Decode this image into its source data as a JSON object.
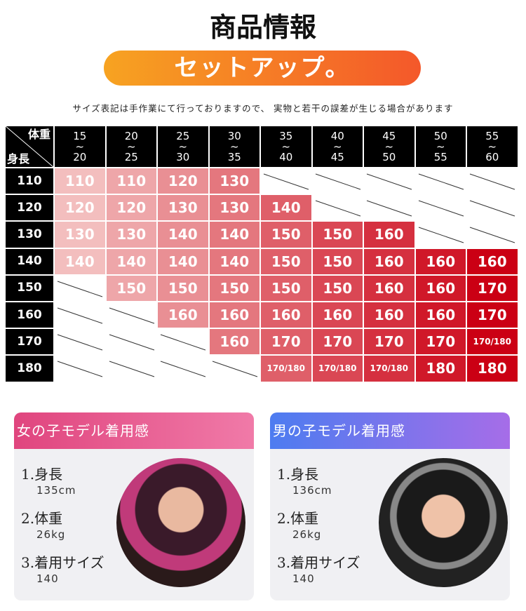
{
  "header": {
    "title": "商品情報",
    "banner": "セットアップ。",
    "note": "サイズ表記は手作業にて行っておりますので、 実物と若干の誤差が生じる場合があります"
  },
  "table": {
    "corner_weight": "体重",
    "corner_height": "身長",
    "columns": [
      "15\n~\n20",
      "20\n~\n25",
      "25\n~\n30",
      "30\n~\n35",
      "35\n~\n40",
      "40\n~\n45",
      "45\n~\n50",
      "50\n~\n55",
      "55\n~\n60"
    ],
    "rows": [
      {
        "height": "110",
        "cells": [
          110,
          110,
          120,
          130,
          null,
          null,
          null,
          null,
          null
        ]
      },
      {
        "height": "120",
        "cells": [
          120,
          120,
          130,
          130,
          140,
          null,
          null,
          null,
          null
        ]
      },
      {
        "height": "130",
        "cells": [
          130,
          130,
          140,
          140,
          150,
          150,
          160,
          null,
          null
        ]
      },
      {
        "height": "140",
        "cells": [
          140,
          140,
          140,
          140,
          150,
          150,
          160,
          160,
          160
        ]
      },
      {
        "height": "150",
        "cells": [
          null,
          150,
          150,
          150,
          150,
          150,
          160,
          160,
          170
        ]
      },
      {
        "height": "160",
        "cells": [
          null,
          null,
          160,
          160,
          160,
          160,
          160,
          160,
          170
        ]
      },
      {
        "height": "170",
        "cells": [
          null,
          null,
          null,
          160,
          170,
          170,
          170,
          170,
          "170/180"
        ]
      },
      {
        "height": "180",
        "cells": [
          null,
          null,
          null,
          null,
          "170/180",
          "170/180",
          "170/180",
          180,
          180
        ]
      }
    ]
  },
  "models": [
    {
      "title": "女の子モデル着用感",
      "items": [
        {
          "label": "1.身長",
          "value": "135cm"
        },
        {
          "label": "2.体重",
          "value": "26kg"
        },
        {
          "label": "3.着用サイズ",
          "value": "140"
        }
      ]
    },
    {
      "title": "男の子モデル着用感",
      "items": [
        {
          "label": "1.身長",
          "value": "136cm"
        },
        {
          "label": "2.体重",
          "value": "26kg"
        },
        {
          "label": "3.着用サイズ",
          "value": "140"
        }
      ]
    }
  ]
}
